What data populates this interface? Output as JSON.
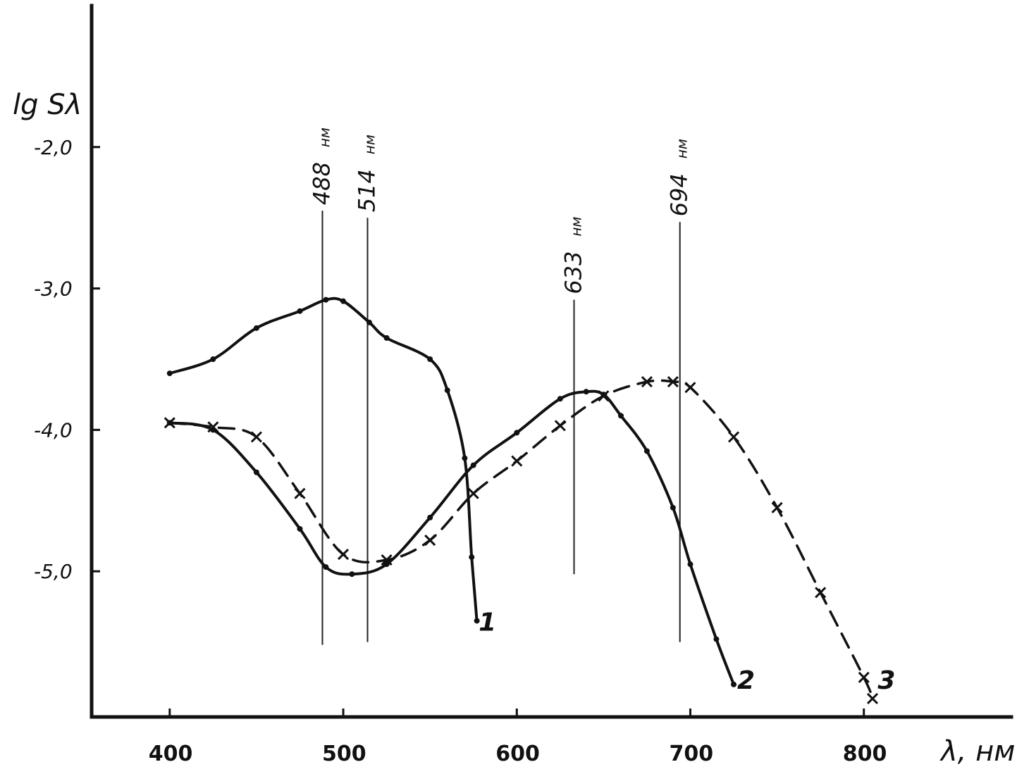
{
  "chart_data": {
    "type": "line",
    "xlabel": "λ, нм",
    "ylabel": "lg Sλ",
    "xlim": [
      355,
      885
    ],
    "ylim": [
      -6.03,
      -1.0
    ],
    "x_ticks": [
      400,
      500,
      600,
      700,
      800
    ],
    "x_tick_labels": [
      "400",
      "500",
      "600",
      "700",
      "800"
    ],
    "y_ticks": [
      -2.0,
      -3.0,
      -4.0,
      -5.0
    ],
    "y_tick_labels": [
      "-2,0",
      "-3,0",
      "-4,0",
      "-5,0"
    ],
    "grid": false,
    "laser_lines": [
      {
        "x": 488,
        "label": "488",
        "unit": "нм",
        "y_top": -2.45,
        "y_bottom": -5.52
      },
      {
        "x": 514,
        "label": "514",
        "unit": "нм",
        "y_top": -2.5,
        "y_bottom": -5.5
      },
      {
        "x": 633,
        "label": "633",
        "unit": "нм",
        "y_top": -3.08,
        "y_bottom": -5.02
      },
      {
        "x": 694,
        "label": "694",
        "unit": "нм",
        "y_top": -2.53,
        "y_bottom": -5.5
      }
    ],
    "series": [
      {
        "name": "1",
        "style": "solid",
        "label_pos": [
          578,
          -5.42
        ],
        "x": [
          400,
          425,
          450,
          475,
          490,
          500,
          515,
          525,
          550,
          560,
          570,
          574,
          577
        ],
        "y": [
          -3.6,
          -3.5,
          -3.28,
          -3.16,
          -3.08,
          -3.09,
          -3.24,
          -3.35,
          -3.5,
          -3.72,
          -4.2,
          -4.9,
          -5.35
        ]
      },
      {
        "name": "2",
        "style": "solid",
        "label_pos": [
          727,
          -5.83
        ],
        "x": [
          400,
          425,
          450,
          475,
          490,
          505,
          525,
          550,
          575,
          600,
          625,
          640,
          650,
          660,
          675,
          690,
          700,
          715,
          725
        ],
        "y": [
          -3.95,
          -4.0,
          -4.3,
          -4.7,
          -4.97,
          -5.02,
          -4.95,
          -4.62,
          -4.25,
          -4.02,
          -3.78,
          -3.73,
          -3.75,
          -3.9,
          -4.15,
          -4.55,
          -4.95,
          -5.48,
          -5.8
        ]
      },
      {
        "name": "3",
        "style": "dashed",
        "label_pos": [
          808,
          -5.83
        ],
        "x": [
          400,
          425,
          450,
          475,
          500,
          525,
          550,
          575,
          600,
          625,
          650,
          675,
          690,
          700,
          725,
          750,
          775,
          800,
          805
        ],
        "y": [
          -3.95,
          -3.98,
          -4.05,
          -4.45,
          -4.88,
          -4.92,
          -4.78,
          -4.45,
          -4.22,
          -3.97,
          -3.76,
          -3.66,
          -3.66,
          -3.7,
          -4.05,
          -4.55,
          -5.15,
          -5.75,
          -5.9
        ]
      }
    ]
  }
}
